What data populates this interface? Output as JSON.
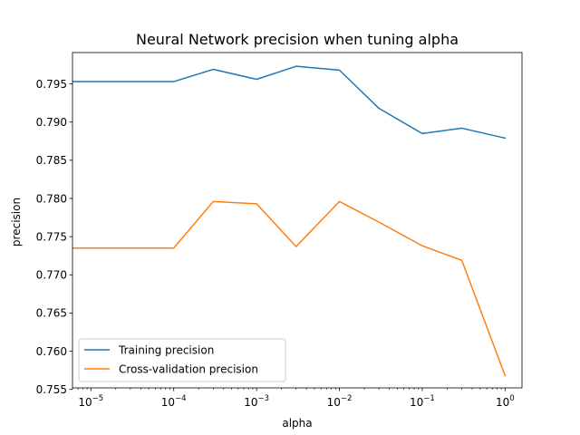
{
  "chart_data": {
    "type": "line",
    "title": "Neural Network precision when tuning alpha",
    "xlabel": "alpha",
    "ylabel": "precision",
    "x_scale": "log",
    "xlim": [
      6e-06,
      1.6
    ],
    "ylim": [
      0.7552,
      0.7991
    ],
    "x_ticks": [
      {
        "value": 1e-05,
        "base": "10",
        "exp": "−5"
      },
      {
        "value": 0.0001,
        "base": "10",
        "exp": "−4"
      },
      {
        "value": 0.001,
        "base": "10",
        "exp": "−3"
      },
      {
        "value": 0.01,
        "base": "10",
        "exp": "−2"
      },
      {
        "value": 0.1,
        "base": "10",
        "exp": "−1"
      },
      {
        "value": 1,
        "base": "10",
        "exp": "0"
      }
    ],
    "y_ticks": [
      "0.755",
      "0.760",
      "0.765",
      "0.770",
      "0.775",
      "0.780",
      "0.785",
      "0.790",
      "0.795"
    ],
    "x": [
      1e-06,
      0.0001,
      0.0003,
      0.001,
      0.003,
      0.01,
      0.03,
      0.1,
      0.3,
      1
    ],
    "series": [
      {
        "name": "Training precision",
        "color": "#1f77b4",
        "values": [
          0.7953,
          0.7953,
          0.7969,
          0.7956,
          0.7973,
          0.7968,
          0.7918,
          0.7885,
          0.7892,
          0.7879
        ]
      },
      {
        "name": "Cross-validation precision",
        "color": "#ff7f0e",
        "values": [
          0.7735,
          0.7735,
          0.7796,
          0.7793,
          0.7737,
          0.7796,
          0.7769,
          0.7738,
          0.7719,
          0.7568
        ]
      }
    ],
    "grid": false,
    "legend_position": "lower-left"
  }
}
